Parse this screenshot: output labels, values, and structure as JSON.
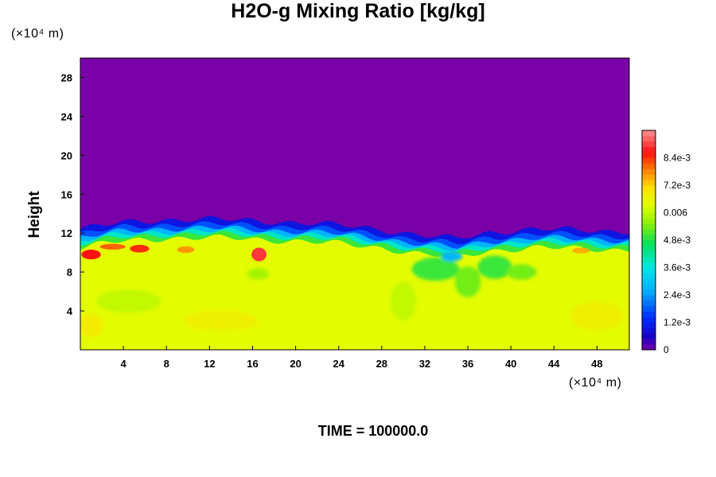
{
  "chart_data": {
    "type": "heatmap",
    "title": "H2O-g Mixing Ratio [kg/kg]",
    "ylabel": "Height",
    "xlabel": "",
    "x_unit": "(×10⁴ m)",
    "y_unit": "(×10⁴ m)",
    "x_ticks": [
      "4",
      "8",
      "12",
      "16",
      "20",
      "24",
      "28",
      "32",
      "36",
      "40",
      "44",
      "48"
    ],
    "y_ticks": [
      "4",
      "8",
      "12",
      "16",
      "20",
      "24",
      "28"
    ],
    "xlim": [
      0,
      51
    ],
    "ylim": [
      0,
      30
    ],
    "colorbar": {
      "ticks": [
        {
          "label": "0",
          "value": 0
        },
        {
          "label": "1.2e-3",
          "value": 0.0012
        },
        {
          "label": "2.4e-3",
          "value": 0.0024
        },
        {
          "label": "3.6e-3",
          "value": 0.0036
        },
        {
          "label": "4.8e-3",
          "value": 0.0048
        },
        {
          "label": "0.006",
          "value": 0.006
        },
        {
          "label": "7.2e-3",
          "value": 0.0072
        },
        {
          "label": "8.4e-3",
          "value": 0.0084
        }
      ],
      "range": [
        0,
        0.0096
      ]
    },
    "field_summary": {
      "lower_layer_value": 0.0064,
      "upper_layer_value": 0,
      "interface_height": [
        {
          "x": 0,
          "y": 10.5
        },
        {
          "x": 4,
          "y": 11.2
        },
        {
          "x": 8,
          "y": 11.5
        },
        {
          "x": 12,
          "y": 11.5
        },
        {
          "x": 16,
          "y": 11.4
        },
        {
          "x": 20,
          "y": 11.2
        },
        {
          "x": 24,
          "y": 10.9
        },
        {
          "x": 28,
          "y": 10.5
        },
        {
          "x": 32,
          "y": 9.8
        },
        {
          "x": 35,
          "y": 9.5
        },
        {
          "x": 38,
          "y": 10.2
        },
        {
          "x": 42,
          "y": 10.5
        },
        {
          "x": 46,
          "y": 10.4
        },
        {
          "x": 51,
          "y": 10.3
        }
      ]
    },
    "footer": "TIME = 100000.0"
  }
}
